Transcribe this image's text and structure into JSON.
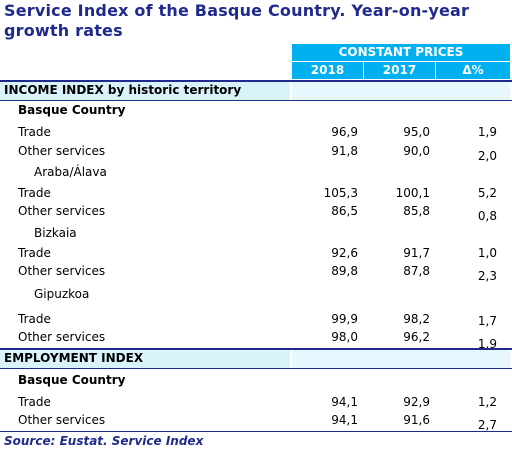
{
  "title": "Service Index of the Basque Country. Year-on-year growth rates",
  "header": {
    "group": "CONSTANT PRICES",
    "col_2018": "2018",
    "col_2017": "2017",
    "col_delta": "Δ%"
  },
  "income": {
    "section": "INCOME INDEX by historic territory",
    "basque": "Basque Country",
    "araba": "Araba/Álava",
    "bizkaia": "Bizkaia",
    "gipuzkoa": "Gipuzkoa",
    "rows": [
      {
        "name": "Trade",
        "v2018": "96,9",
        "v2017": "95,0",
        "delta": "1,9"
      },
      {
        "name": "Other services",
        "v2018": "91,8",
        "v2017": "90,0",
        "delta": "2,0"
      },
      {
        "name": "Trade",
        "v2018": "105,3",
        "v2017": "100,1",
        "delta": "5,2"
      },
      {
        "name": "Other services",
        "v2018": "86,5",
        "v2017": "85,8",
        "delta": "0,8"
      },
      {
        "name": "Trade",
        "v2018": "92,6",
        "v2017": "91,7",
        "delta": "1,0"
      },
      {
        "name": "Other services",
        "v2018": "89,8",
        "v2017": "87,8",
        "delta": "2,3"
      },
      {
        "name": "Trade",
        "v2018": "99,9",
        "v2017": "98,2",
        "delta": "1,7"
      },
      {
        "name": "Other services",
        "v2018": "98,0",
        "v2017": "96,2",
        "delta": "1,9"
      }
    ]
  },
  "employment": {
    "section": "EMPLOYMENT INDEX",
    "basque": "Basque Country",
    "rows": [
      {
        "name": "Trade",
        "v2018": "94,1",
        "v2017": "92,9",
        "delta": "1,2"
      },
      {
        "name": "Other services",
        "v2018": "94,1",
        "v2017": "91,6",
        "delta": "2,7"
      }
    ]
  },
  "source": "Source: Eustat. Service Index",
  "colors": {
    "title": "#1f2a8c",
    "header_bg": "#00b0f0",
    "band": "#d9f3fb"
  }
}
